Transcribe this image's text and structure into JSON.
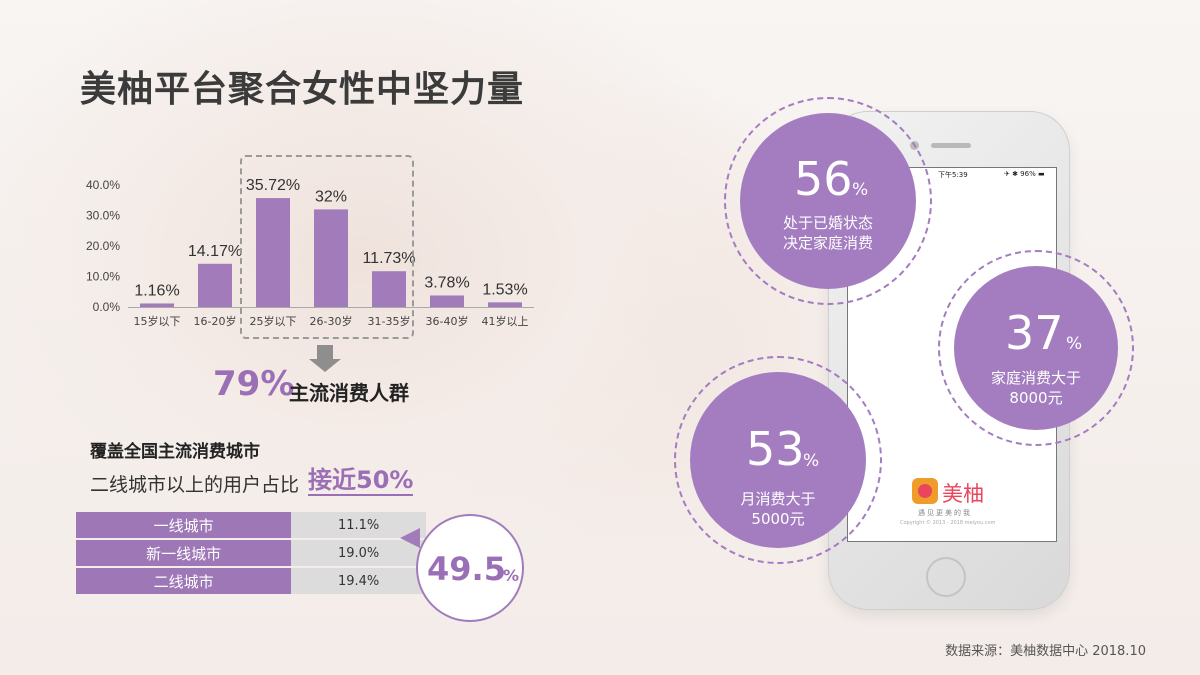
{
  "title": "美柚平台聚合女性中坚力量",
  "chart_data": {
    "type": "bar",
    "categories": [
      "15岁以下",
      "16-20岁",
      "25岁以下",
      "26-30岁",
      "31-35岁",
      "36-40岁",
      "41岁以上"
    ],
    "values": [
      1.16,
      14.17,
      35.72,
      32,
      11.73,
      3.78,
      1.53
    ],
    "value_labels": [
      "1.16%",
      "14.17%",
      "35.72%",
      "32%",
      "11.73%",
      "3.78%",
      "1.53%"
    ],
    "y_ticks": [
      "0.0%",
      "10.0%",
      "20.0%",
      "30.0%",
      "40.0%"
    ],
    "ylim": [
      0,
      40
    ],
    "bar_color": "#a27cba",
    "highlighted_categories": [
      "25岁以下",
      "26-30岁",
      "31-35岁"
    ]
  },
  "highlight": {
    "value": "79%",
    "label": "主流消费人群"
  },
  "coverage": {
    "title": "覆盖全国主流消费城市",
    "subtitle_prefix": "二线城市以上的用户占比",
    "subtitle_highlight": "接近50%",
    "rows": [
      {
        "name": "一线城市",
        "value": "11.1%"
      },
      {
        "name": "新一线城市",
        "value": "19.0%"
      },
      {
        "name": "二线城市",
        "value": "19.4%"
      }
    ],
    "total_number": "49.5",
    "total_suffix": "%"
  },
  "stats": [
    {
      "number": "56",
      "suffix": "%",
      "line1": "处于已婚状态",
      "line2": "决定家庭消费"
    },
    {
      "number": "37",
      "suffix": "%",
      "line1": "家庭消费大于",
      "line2": "8000元"
    },
    {
      "number": "53",
      "suffix": "%",
      "line1": "月消费大于",
      "line2": "5000元"
    }
  ],
  "phone": {
    "status_time": "下午5:39",
    "status_right": "✈ ✱ 96% ▬",
    "app_name": "美柚",
    "slogan": "遇见更美的我",
    "copyright": "Copyright © 2013 - 2018 meiyou.com"
  },
  "source": "数据来源：美柚数据中心 2018.10",
  "colors": {
    "accent": "#a27cba",
    "circle": "#a47cc0"
  }
}
